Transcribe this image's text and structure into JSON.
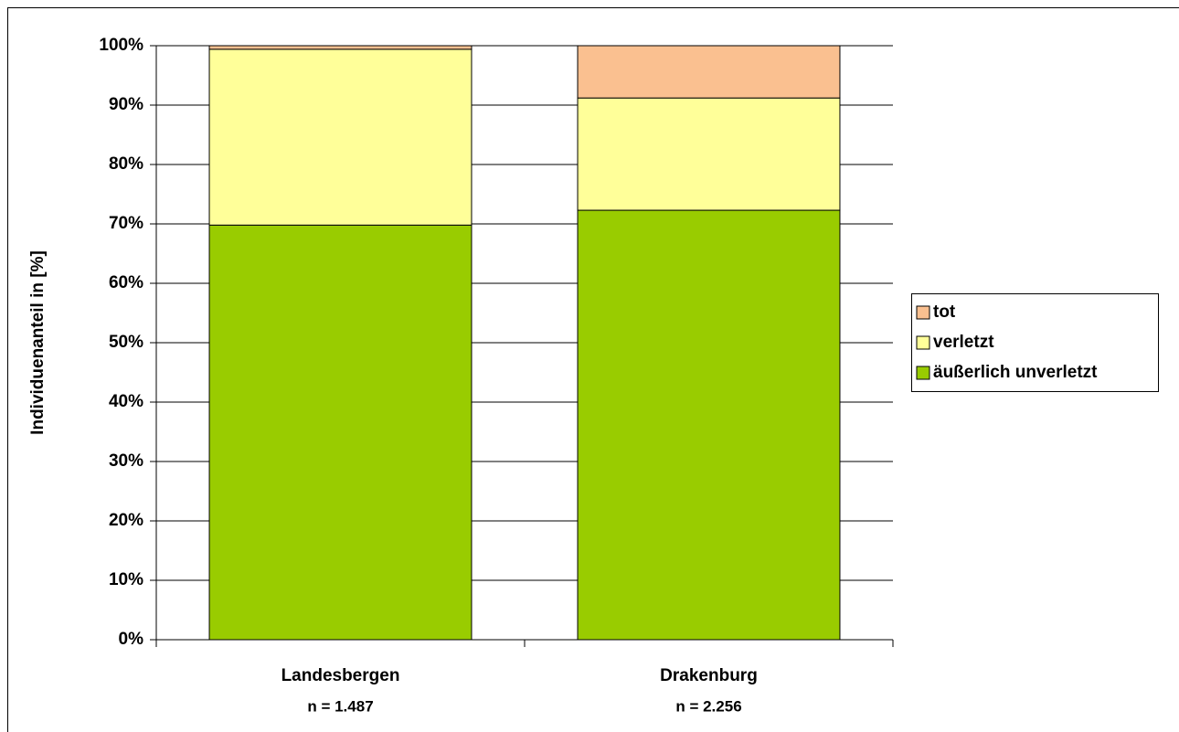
{
  "chart_data": {
    "type": "stacked_bar",
    "y_label": "Individuenanteil in [%]",
    "categories": [
      "Landesbergen",
      "Drakenburg"
    ],
    "category_notes": [
      "n = 1.487",
      "n = 2.256"
    ],
    "series": [
      {
        "name": "äußerlich unverletzt",
        "color": "#99cc00",
        "values": [
          69.8,
          72.3
        ]
      },
      {
        "name": "verletzt",
        "color": "#ffff99",
        "values": [
          29.6,
          18.9
        ]
      },
      {
        "name": "tot",
        "color": "#fac090",
        "values": [
          0.6,
          8.8
        ]
      }
    ],
    "ylim": [
      0,
      100
    ],
    "yticks": [
      {
        "value": 0,
        "label": "0%"
      },
      {
        "value": 10,
        "label": "10%"
      },
      {
        "value": 20,
        "label": "20%"
      },
      {
        "value": 30,
        "label": "30%"
      },
      {
        "value": 40,
        "label": "40%"
      },
      {
        "value": 50,
        "label": "50%"
      },
      {
        "value": 60,
        "label": "60%"
      },
      {
        "value": 70,
        "label": "70%"
      },
      {
        "value": 80,
        "label": "80%"
      },
      {
        "value": 90,
        "label": "90%"
      },
      {
        "value": 100,
        "label": "100%"
      }
    ],
    "grid": true,
    "legend": "right"
  }
}
